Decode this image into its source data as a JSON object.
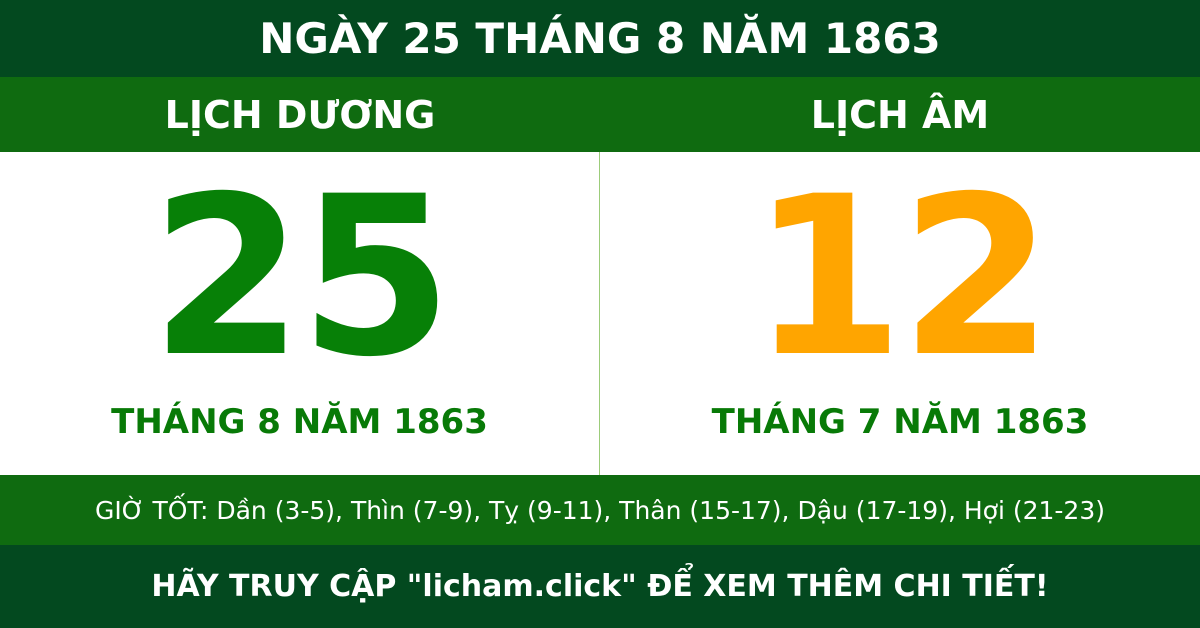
{
  "title": "NGÀY 25 THÁNG 8 NĂM 1863",
  "solar": {
    "heading": "LỊCH DƯƠNG",
    "day": "25",
    "month_year": "THÁNG 8 NĂM 1863"
  },
  "lunar": {
    "heading": "LỊCH ÂM",
    "day": "12",
    "month_year": "THÁNG 7 NĂM 1863"
  },
  "good_hours": "GIỜ TỐT: Dần (3-5), Thìn (7-9), Tỵ (9-11), Thân (15-17), Dậu (17-19), Hợi (21-23)",
  "footer": "HÃY TRUY CẬP \"licham.click\" ĐỂ XEM THÊM CHI TIẾT!",
  "colors": {
    "dark_green": "#03491f",
    "band_green": "#0f6b10",
    "solar_day": "#078007",
    "lunar_day": "#ffa500"
  }
}
